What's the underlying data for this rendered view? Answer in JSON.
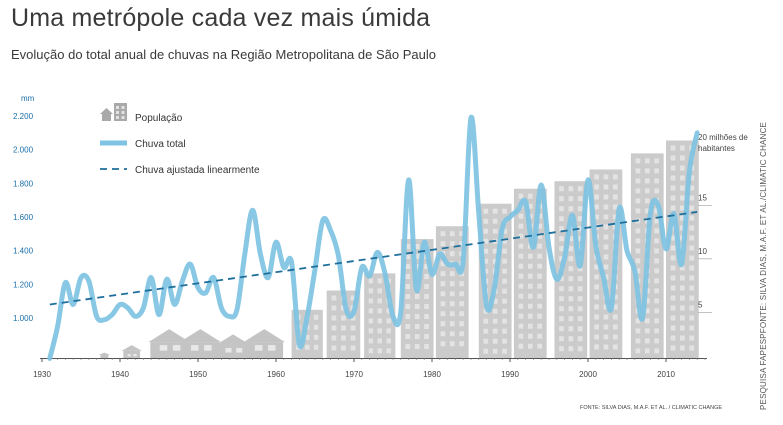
{
  "header": {
    "title": "Uma metrópole cada vez mais úmida",
    "subtitle": "Evolução do total anual de chuvas na Região Metropolitana de São Paulo"
  },
  "credit_side": "PESQUISA FAPESPFONTE: SILVA DIAS, M.A.F. ET AL./CLIMATIC CHANCE",
  "source": "FONTE: SILVA DIAS, M.A.F. ET AL. / CLIMATIC CHANGE",
  "colors": {
    "rain": "#7ec3e3",
    "trend": "#1f6f9c",
    "buildings": "#cbcbcb",
    "houses": "#c4c4c4",
    "axis_labels": "#1a6fa8"
  },
  "chart_data": {
    "type": "line",
    "ylabel": "mm",
    "ylim": [
      750,
      2250
    ],
    "xlim": [
      1930,
      2015
    ],
    "x_ticks": [
      1930,
      1940,
      1950,
      1960,
      1970,
      1980,
      1990,
      2000,
      2010
    ],
    "y_ticks": [
      1000,
      1200,
      1400,
      1600,
      1800,
      2000,
      2200
    ],
    "y_tick_labels": [
      "1.000",
      "1.200",
      "1.400",
      "1.600",
      "1.800",
      "2.000",
      "2.200"
    ],
    "legend": [
      {
        "key": "population",
        "label": "População",
        "icon": "buildings-icon"
      },
      {
        "key": "rain",
        "label": "Chuva total",
        "style": "solid"
      },
      {
        "key": "trend",
        "label": "Chuva ajustada linearmente",
        "style": "dashed"
      }
    ],
    "series": [
      {
        "name": "Chuva total",
        "x": [
          1931,
          1932,
          1933,
          1934,
          1935,
          1936,
          1937,
          1938,
          1939,
          1940,
          1941,
          1942,
          1943,
          1944,
          1945,
          1946,
          1947,
          1948,
          1949,
          1950,
          1951,
          1952,
          1953,
          1954,
          1955,
          1956,
          1957,
          1958,
          1959,
          1960,
          1961,
          1962,
          1963,
          1964,
          1965,
          1966,
          1967,
          1968,
          1969,
          1970,
          1971,
          1972,
          1973,
          1974,
          1975,
          1976,
          1977,
          1978,
          1979,
          1980,
          1981,
          1982,
          1983,
          1984,
          1985,
          1986,
          1987,
          1988,
          1989,
          1990,
          1991,
          1992,
          1993,
          1994,
          1995,
          1996,
          1997,
          1998,
          1999,
          2000,
          2001,
          2002,
          2003,
          2004,
          2005,
          2006,
          2007,
          2008,
          2009,
          2010,
          2011,
          2012,
          2013,
          2014
        ],
        "values": [
          760,
          950,
          1210,
          1080,
          1240,
          1220,
          1010,
          990,
          1020,
          1080,
          1060,
          1010,
          1060,
          1240,
          1020,
          1230,
          1080,
          1220,
          1320,
          1180,
          1150,
          1240,
          1060,
          1010,
          1050,
          1380,
          1640,
          1380,
          1240,
          1450,
          1300,
          1330,
          840,
          1010,
          1290,
          1580,
          1520,
          1370,
          1050,
          1040,
          1300,
          1250,
          1390,
          1260,
          1010,
          1040,
          1820,
          1170,
          1450,
          1260,
          1380,
          1320,
          1320,
          1340,
          2190,
          1620,
          1070,
          1180,
          1530,
          1600,
          1640,
          1690,
          1420,
          1790,
          1420,
          1230,
          1360,
          1610,
          1310,
          1820,
          1430,
          1240,
          1060,
          1650,
          1400,
          1280,
          1000,
          1620,
          1670,
          1410,
          1620,
          1320,
          1870,
          2100
        ]
      },
      {
        "name": "Chuva ajustada linearmente",
        "x": [
          1931,
          2014
        ],
        "values": [
          1080,
          1630
        ]
      }
    ],
    "population": {
      "label_top": "20 milhões de habitantes",
      "scale_ticks": [
        5,
        10,
        15
      ],
      "max_millions": 21,
      "buildings": [
        {
          "x_start": 1962,
          "x_end": 1966,
          "millions": 4.5
        },
        {
          "x_start": 1966.5,
          "x_end": 1970.8,
          "millions": 6.3
        },
        {
          "x_start": 1971.3,
          "x_end": 1975.3,
          "millions": 7.9
        },
        {
          "x_start": 1976,
          "x_end": 1980.2,
          "millions": 11.1
        },
        {
          "x_start": 1980.5,
          "x_end": 1984.7,
          "millions": 12.3
        },
        {
          "x_start": 1986,
          "x_end": 1990.2,
          "millions": 14.4
        },
        {
          "x_start": 1990.5,
          "x_end": 1994.7,
          "millions": 15.8
        },
        {
          "x_start": 1995.7,
          "x_end": 1999.9,
          "millions": 16.5
        },
        {
          "x_start": 2000.2,
          "x_end": 2004.4,
          "millions": 17.6
        },
        {
          "x_start": 2005.5,
          "x_end": 2009.7,
          "millions": 19.1
        },
        {
          "x_start": 2010,
          "x_end": 2014.2,
          "millions": 20.3
        }
      ],
      "houses": [
        {
          "x": 1938,
          "millions": 0.5
        },
        {
          "x": 1941.5,
          "millions": 1.2
        },
        {
          "x": 1946.3,
          "millions": 2.7
        },
        {
          "x": 1950.3,
          "millions": 2.7
        },
        {
          "x": 1954.5,
          "millions": 2.2
        },
        {
          "x": 1958.5,
          "millions": 2.7
        }
      ]
    }
  }
}
